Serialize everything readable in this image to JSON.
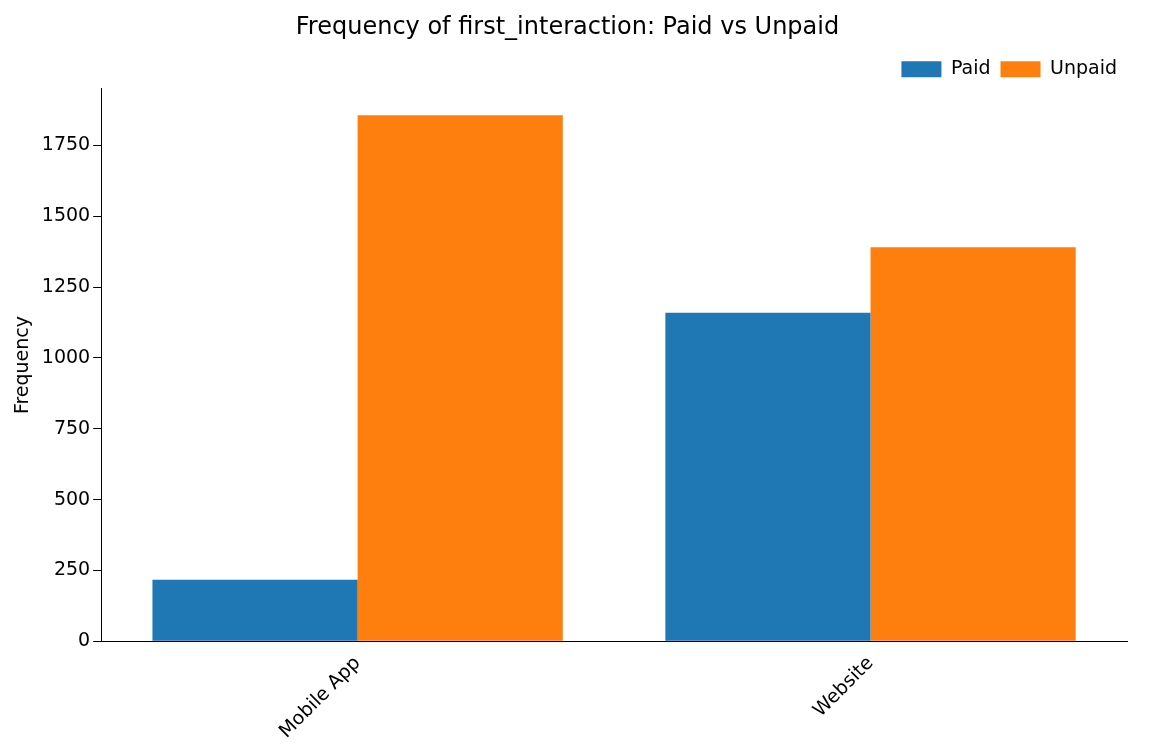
{
  "chart_data": {
    "type": "bar",
    "title": "Frequency of first_interaction: Paid vs Unpaid",
    "ylabel": "Frequency",
    "categories": [
      "Mobile App",
      "Website"
    ],
    "series": [
      {
        "name": "Paid",
        "color": "#1f77b4",
        "values": [
          217,
          1160
        ]
      },
      {
        "name": "Unpaid",
        "color": "#ff7f0e",
        "values": [
          1857,
          1391
        ]
      }
    ],
    "ylim": [
      0,
      1950
    ],
    "yticks": [
      0,
      250,
      500,
      750,
      1000,
      1250,
      1500,
      1750
    ],
    "grid": false,
    "legend": "top right"
  }
}
